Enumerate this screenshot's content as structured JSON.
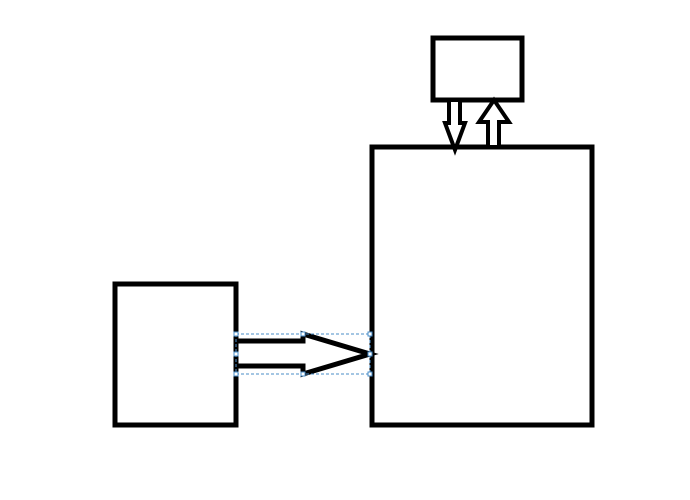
{
  "diagram": {
    "stroke_color": "#000000",
    "background_color": "#ffffff",
    "selection_color": "#4a8cc7",
    "selected_shape": "right-block-arrow",
    "shapes": [
      {
        "name": "small-left-box",
        "kind": "rectangle"
      },
      {
        "name": "large-right-box",
        "kind": "rectangle"
      },
      {
        "name": "top-small-box",
        "kind": "rectangle"
      },
      {
        "name": "right-block-arrow",
        "kind": "block-arrow",
        "direction": "right"
      },
      {
        "name": "down-block-arrow",
        "kind": "block-arrow",
        "direction": "down"
      },
      {
        "name": "up-block-arrow",
        "kind": "block-arrow",
        "direction": "up"
      }
    ]
  }
}
